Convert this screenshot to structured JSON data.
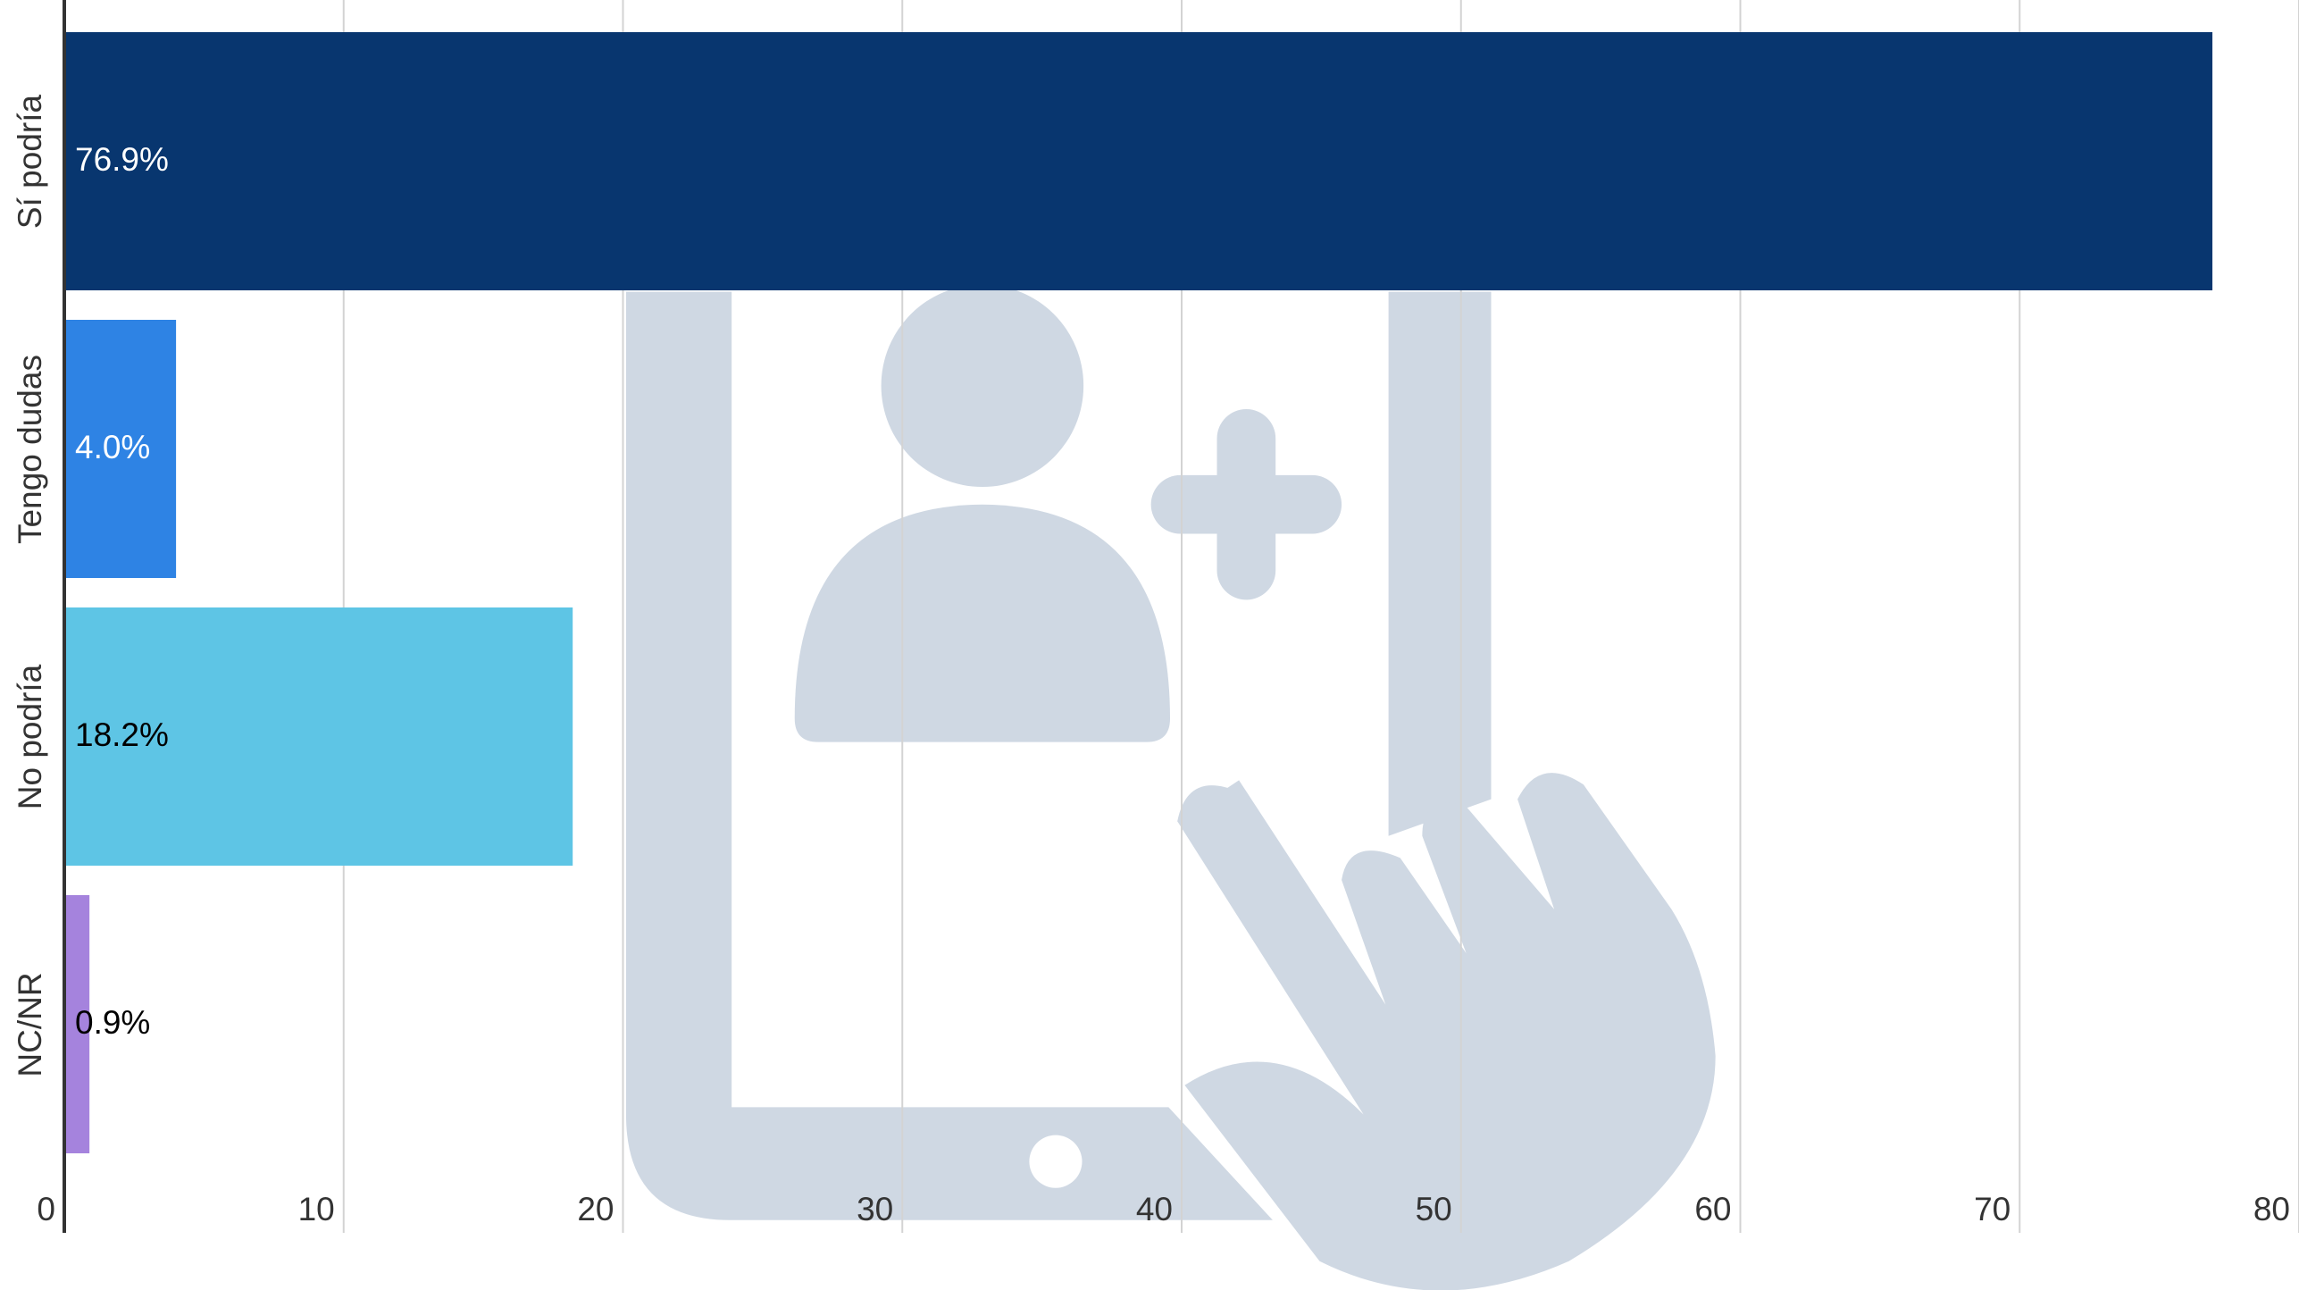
{
  "chart_data": {
    "type": "hbar",
    "categories": [
      "Sí podría",
      "Tengo dudas",
      "No podría",
      "NC/NR"
    ],
    "values": [
      76.9,
      4.0,
      18.2,
      0.9
    ],
    "value_labels": [
      "76.9%",
      "4.0%",
      "18.2%",
      "0.9%"
    ],
    "colors": [
      "#08366f",
      "#2e83e4",
      "#5ec5e5",
      "#a583dd"
    ],
    "label_colors": [
      "#ffffff",
      "#ffffff",
      "#000000",
      "#000000"
    ],
    "xlim": [
      0,
      80
    ],
    "xticks": [
      0,
      10,
      20,
      30,
      40,
      50,
      60,
      70,
      80
    ],
    "grid": true
  }
}
